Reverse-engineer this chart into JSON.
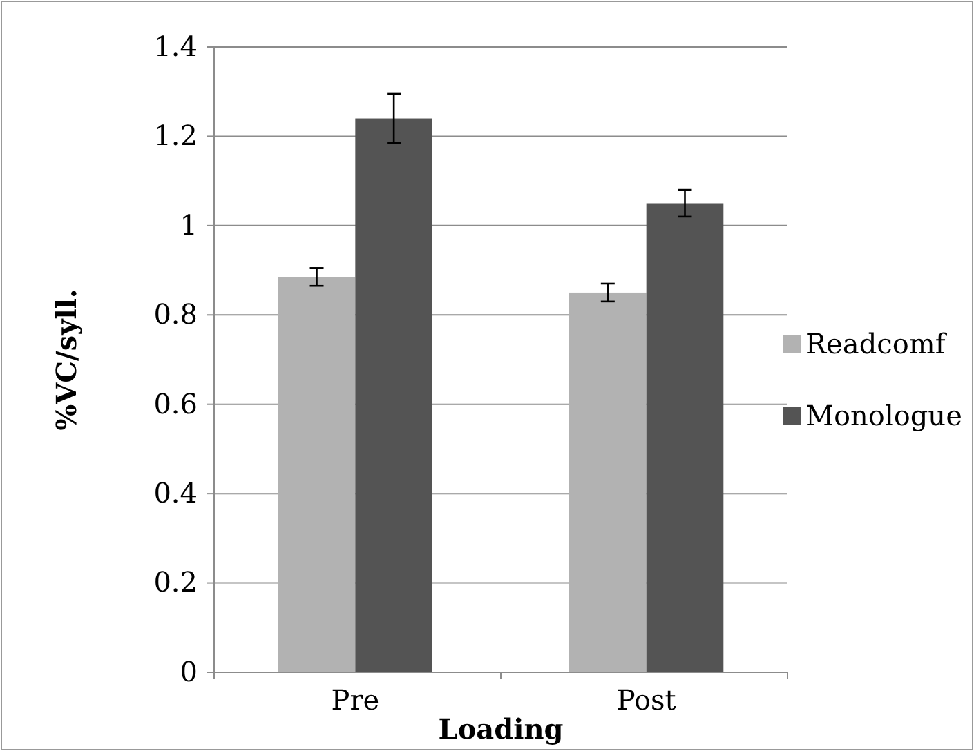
{
  "chart_data": {
    "type": "bar",
    "xlabel": "Loading",
    "ylabel": "%VC/syll.",
    "categories": [
      "Pre",
      "Post"
    ],
    "series": [
      {
        "name": "Readcomf",
        "color": "#b2b2b2",
        "values": [
          0.885,
          0.85
        ],
        "errors": [
          0.02,
          0.02
        ]
      },
      {
        "name": "Monologue",
        "color": "#545454",
        "values": [
          1.24,
          1.05
        ],
        "errors": [
          0.055,
          0.03
        ]
      }
    ],
    "ylim": [
      0,
      1.4
    ],
    "yticks": [
      0,
      0.2,
      0.4,
      0.6,
      0.8,
      {
        "value": 1,
        "label": "1"
      },
      1.2,
      1.4
    ],
    "grid": "y",
    "legend": "right"
  }
}
